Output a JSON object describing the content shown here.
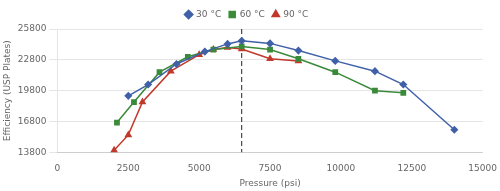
{
  "chart_data": {
    "type": "line",
    "xlabel": "Pressure (psi)",
    "ylabel": "Efficiency (USP Plates)",
    "xlim": [
      0,
      15000
    ],
    "xticks": [
      0,
      2500,
      5000,
      7500,
      10000,
      12500,
      15000
    ],
    "ylim": [
      13800,
      25800
    ],
    "yticks": [
      13800,
      16800,
      19800,
      22800,
      25800
    ],
    "grid": true,
    "legend": "top",
    "vline": 6500,
    "series": [
      {
        "name": "30 °C",
        "color": "#4060a8",
        "marker": "diamond",
        "x": [
          2500,
          3200,
          4200,
          5200,
          6000,
          6500,
          7500,
          8500,
          9800,
          11200,
          12200,
          14000
        ],
        "values": [
          19300,
          20400,
          22400,
          23600,
          24350,
          24650,
          24400,
          23700,
          22700,
          21700,
          20400,
          16000
        ]
      },
      {
        "name": "60 °C",
        "color": "#3a8a3a",
        "marker": "square",
        "x": [
          2100,
          2700,
          3600,
          4600,
          5500,
          6500,
          7500,
          8500,
          9800,
          11200,
          12200
        ],
        "values": [
          16700,
          18700,
          21600,
          23100,
          23800,
          24100,
          23800,
          22900,
          21600,
          19800,
          19600
        ]
      },
      {
        "name": "90 °C",
        "color": "#c0392b",
        "marker": "triangle",
        "x": [
          2000,
          2500,
          3000,
          4000,
          5000,
          5500,
          6000,
          6500,
          7500,
          8500
        ],
        "values": [
          14000,
          15500,
          18700,
          21700,
          23300,
          23800,
          24000,
          23850,
          22900,
          22700
        ]
      }
    ]
  }
}
